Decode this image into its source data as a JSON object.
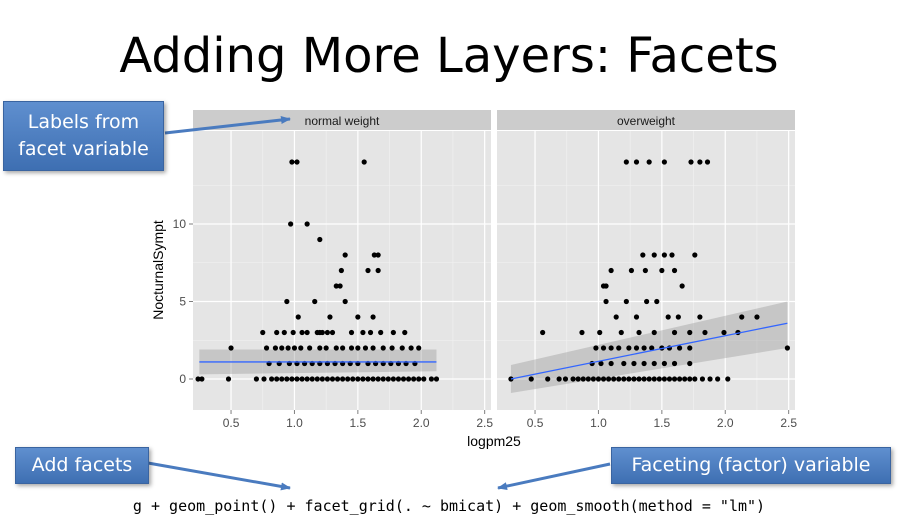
{
  "slide": {
    "title": "Adding More Layers: Facets",
    "code": "g + geom_point() + facet_grid(. ~ bmicat) + geom_smooth(method = \"lm\")"
  },
  "callouts": {
    "labels_from_facet": [
      "Labels from",
      "facet variable"
    ],
    "add_facets": "Add facets",
    "faceting_variable": "Faceting (factor) variable"
  },
  "colors": {
    "panel_bg": "#e5e5e5",
    "strip_bg": "#cccccc",
    "point": "#000000",
    "smooth_line": "#3366ff",
    "callout_bg": "#4a7bbf",
    "arrow": "#4a7bbf"
  },
  "chart_data": {
    "type": "scatter",
    "xlabel": "logpm25",
    "ylabel": "NocturnalSympt",
    "xlim": [
      0.2,
      2.55
    ],
    "ylim": [
      -2,
      16
    ],
    "xticks": [
      0.5,
      1.0,
      1.5,
      2.0,
      2.5
    ],
    "xtick_labels": [
      "0.5",
      "1.0",
      "1.5",
      "2.0",
      "2.5"
    ],
    "yticks": [
      0,
      5,
      10
    ],
    "ytick_labels": [
      "0",
      "5",
      "10"
    ],
    "grid": true,
    "facets": [
      {
        "label": "normal weight",
        "points": [
          [
            0.98,
            14
          ],
          [
            1.02,
            14
          ],
          [
            1.55,
            14
          ],
          [
            0.97,
            10
          ],
          [
            1.1,
            10
          ],
          [
            1.2,
            9
          ],
          [
            1.4,
            8
          ],
          [
            1.63,
            8
          ],
          [
            1.66,
            8
          ],
          [
            1.37,
            7
          ],
          [
            1.58,
            7
          ],
          [
            1.66,
            7
          ],
          [
            1.33,
            6
          ],
          [
            1.36,
            6
          ],
          [
            0.94,
            5
          ],
          [
            1.16,
            5
          ],
          [
            1.4,
            5
          ],
          [
            1.03,
            4
          ],
          [
            1.28,
            4
          ],
          [
            1.5,
            4
          ],
          [
            1.62,
            4
          ],
          [
            1.06,
            3
          ],
          [
            1.2,
            3
          ],
          [
            1.45,
            3
          ],
          [
            1.54,
            3
          ],
          [
            1.78,
            3
          ],
          [
            1.87,
            3
          ],
          [
            0.75,
            3
          ],
          [
            0.86,
            3
          ],
          [
            0.92,
            3
          ],
          [
            0.99,
            3
          ],
          [
            1.1,
            3
          ],
          [
            1.18,
            3
          ],
          [
            1.22,
            3
          ],
          [
            1.26,
            3
          ],
          [
            1.3,
            3
          ],
          [
            1.6,
            3
          ],
          [
            1.68,
            3
          ],
          [
            0.5,
            2
          ],
          [
            0.78,
            2
          ],
          [
            0.85,
            2
          ],
          [
            0.9,
            2
          ],
          [
            0.95,
            2
          ],
          [
            1.0,
            2
          ],
          [
            1.05,
            2
          ],
          [
            1.12,
            2
          ],
          [
            1.2,
            2
          ],
          [
            1.25,
            2
          ],
          [
            1.33,
            2
          ],
          [
            1.38,
            2
          ],
          [
            1.45,
            2
          ],
          [
            1.5,
            2
          ],
          [
            1.56,
            2
          ],
          [
            1.62,
            2
          ],
          [
            1.7,
            2
          ],
          [
            1.77,
            2
          ],
          [
            1.85,
            2
          ],
          [
            1.92,
            2
          ],
          [
            1.98,
            2
          ],
          [
            0.8,
            1
          ],
          [
            0.88,
            1
          ],
          [
            0.96,
            1
          ],
          [
            1.02,
            1
          ],
          [
            1.08,
            1
          ],
          [
            1.14,
            1
          ],
          [
            1.2,
            1
          ],
          [
            1.26,
            1
          ],
          [
            1.32,
            1
          ],
          [
            1.38,
            1
          ],
          [
            1.44,
            1
          ],
          [
            1.5,
            1
          ],
          [
            1.58,
            1
          ],
          [
            1.64,
            1
          ],
          [
            1.7,
            1
          ],
          [
            1.76,
            1
          ],
          [
            1.82,
            1
          ],
          [
            1.88,
            1
          ],
          [
            1.95,
            1
          ],
          [
            0.24,
            0
          ],
          [
            0.27,
            0
          ],
          [
            0.48,
            0
          ],
          [
            0.7,
            0
          ],
          [
            0.76,
            0
          ],
          [
            0.82,
            0
          ],
          [
            0.86,
            0
          ],
          [
            0.9,
            0
          ],
          [
            0.94,
            0
          ],
          [
            0.98,
            0
          ],
          [
            1.02,
            0
          ],
          [
            1.06,
            0
          ],
          [
            1.1,
            0
          ],
          [
            1.14,
            0
          ],
          [
            1.18,
            0
          ],
          [
            1.22,
            0
          ],
          [
            1.26,
            0
          ],
          [
            1.3,
            0
          ],
          [
            1.34,
            0
          ],
          [
            1.38,
            0
          ],
          [
            1.42,
            0
          ],
          [
            1.46,
            0
          ],
          [
            1.5,
            0
          ],
          [
            1.54,
            0
          ],
          [
            1.58,
            0
          ],
          [
            1.62,
            0
          ],
          [
            1.66,
            0
          ],
          [
            1.7,
            0
          ],
          [
            1.74,
            0
          ],
          [
            1.78,
            0
          ],
          [
            1.82,
            0
          ],
          [
            1.86,
            0
          ],
          [
            1.9,
            0
          ],
          [
            1.94,
            0
          ],
          [
            1.98,
            0
          ],
          [
            2.02,
            0
          ],
          [
            2.08,
            0
          ],
          [
            2.12,
            0
          ]
        ],
        "smooth": {
          "x": [
            0.25,
            2.12
          ],
          "y": [
            1.1,
            1.1
          ],
          "se_lower": [
            0.3,
            0.5
          ],
          "se_upper": [
            1.9,
            1.9
          ]
        }
      },
      {
        "label": "overweight",
        "points": [
          [
            1.22,
            14
          ],
          [
            1.3,
            14
          ],
          [
            1.4,
            14
          ],
          [
            1.52,
            14
          ],
          [
            1.73,
            14
          ],
          [
            1.8,
            14
          ],
          [
            1.86,
            14
          ],
          [
            1.35,
            8
          ],
          [
            1.44,
            8
          ],
          [
            1.52,
            8
          ],
          [
            1.58,
            8
          ],
          [
            1.76,
            8
          ],
          [
            1.1,
            7
          ],
          [
            1.26,
            7
          ],
          [
            1.37,
            7
          ],
          [
            1.5,
            7
          ],
          [
            1.6,
            7
          ],
          [
            1.66,
            6
          ],
          [
            1.04,
            6
          ],
          [
            1.06,
            6
          ],
          [
            1.22,
            5
          ],
          [
            1.38,
            5
          ],
          [
            1.46,
            5
          ],
          [
            1.06,
            5
          ],
          [
            1.14,
            4
          ],
          [
            1.3,
            4
          ],
          [
            1.55,
            4
          ],
          [
            1.63,
            4
          ],
          [
            1.8,
            4
          ],
          [
            2.13,
            4
          ],
          [
            2.25,
            4
          ],
          [
            0.56,
            3
          ],
          [
            0.87,
            3
          ],
          [
            1.01,
            3
          ],
          [
            1.18,
            3
          ],
          [
            1.32,
            3
          ],
          [
            1.44,
            3
          ],
          [
            1.6,
            3
          ],
          [
            1.72,
            3
          ],
          [
            1.84,
            3
          ],
          [
            1.99,
            3
          ],
          [
            2.1,
            3
          ],
          [
            0.98,
            2
          ],
          [
            1.04,
            2
          ],
          [
            1.1,
            2
          ],
          [
            1.16,
            2
          ],
          [
            1.24,
            2
          ],
          [
            1.3,
            2
          ],
          [
            1.36,
            2
          ],
          [
            1.42,
            2
          ],
          [
            1.5,
            2
          ],
          [
            1.56,
            2
          ],
          [
            1.64,
            2
          ],
          [
            1.72,
            2
          ],
          [
            0.95,
            1
          ],
          [
            1.02,
            1
          ],
          [
            1.1,
            1
          ],
          [
            1.2,
            1
          ],
          [
            1.28,
            1
          ],
          [
            1.36,
            1
          ],
          [
            1.44,
            1
          ],
          [
            1.52,
            1
          ],
          [
            1.6,
            1
          ],
          [
            1.72,
            1
          ],
          [
            2.49,
            2
          ],
          [
            0.31,
            0
          ],
          [
            0.47,
            0
          ],
          [
            0.6,
            0
          ],
          [
            0.69,
            0
          ],
          [
            0.74,
            0
          ],
          [
            0.8,
            0
          ],
          [
            0.84,
            0
          ],
          [
            0.88,
            0
          ],
          [
            0.92,
            0
          ],
          [
            0.96,
            0
          ],
          [
            1.0,
            0
          ],
          [
            1.04,
            0
          ],
          [
            1.08,
            0
          ],
          [
            1.12,
            0
          ],
          [
            1.16,
            0
          ],
          [
            1.2,
            0
          ],
          [
            1.24,
            0
          ],
          [
            1.28,
            0
          ],
          [
            1.32,
            0
          ],
          [
            1.36,
            0
          ],
          [
            1.4,
            0
          ],
          [
            1.44,
            0
          ],
          [
            1.48,
            0
          ],
          [
            1.52,
            0
          ],
          [
            1.56,
            0
          ],
          [
            1.6,
            0
          ],
          [
            1.64,
            0
          ],
          [
            1.68,
            0
          ],
          [
            1.72,
            0
          ],
          [
            1.76,
            0
          ],
          [
            1.82,
            0
          ],
          [
            1.88,
            0
          ],
          [
            1.94,
            0
          ],
          [
            2.02,
            0
          ]
        ],
        "smooth": {
          "x": [
            0.31,
            2.49
          ],
          "y": [
            0.0,
            3.6
          ],
          "se_lower": [
            -0.9,
            2.0
          ],
          "se_upper": [
            0.9,
            5.0
          ]
        }
      }
    ]
  }
}
